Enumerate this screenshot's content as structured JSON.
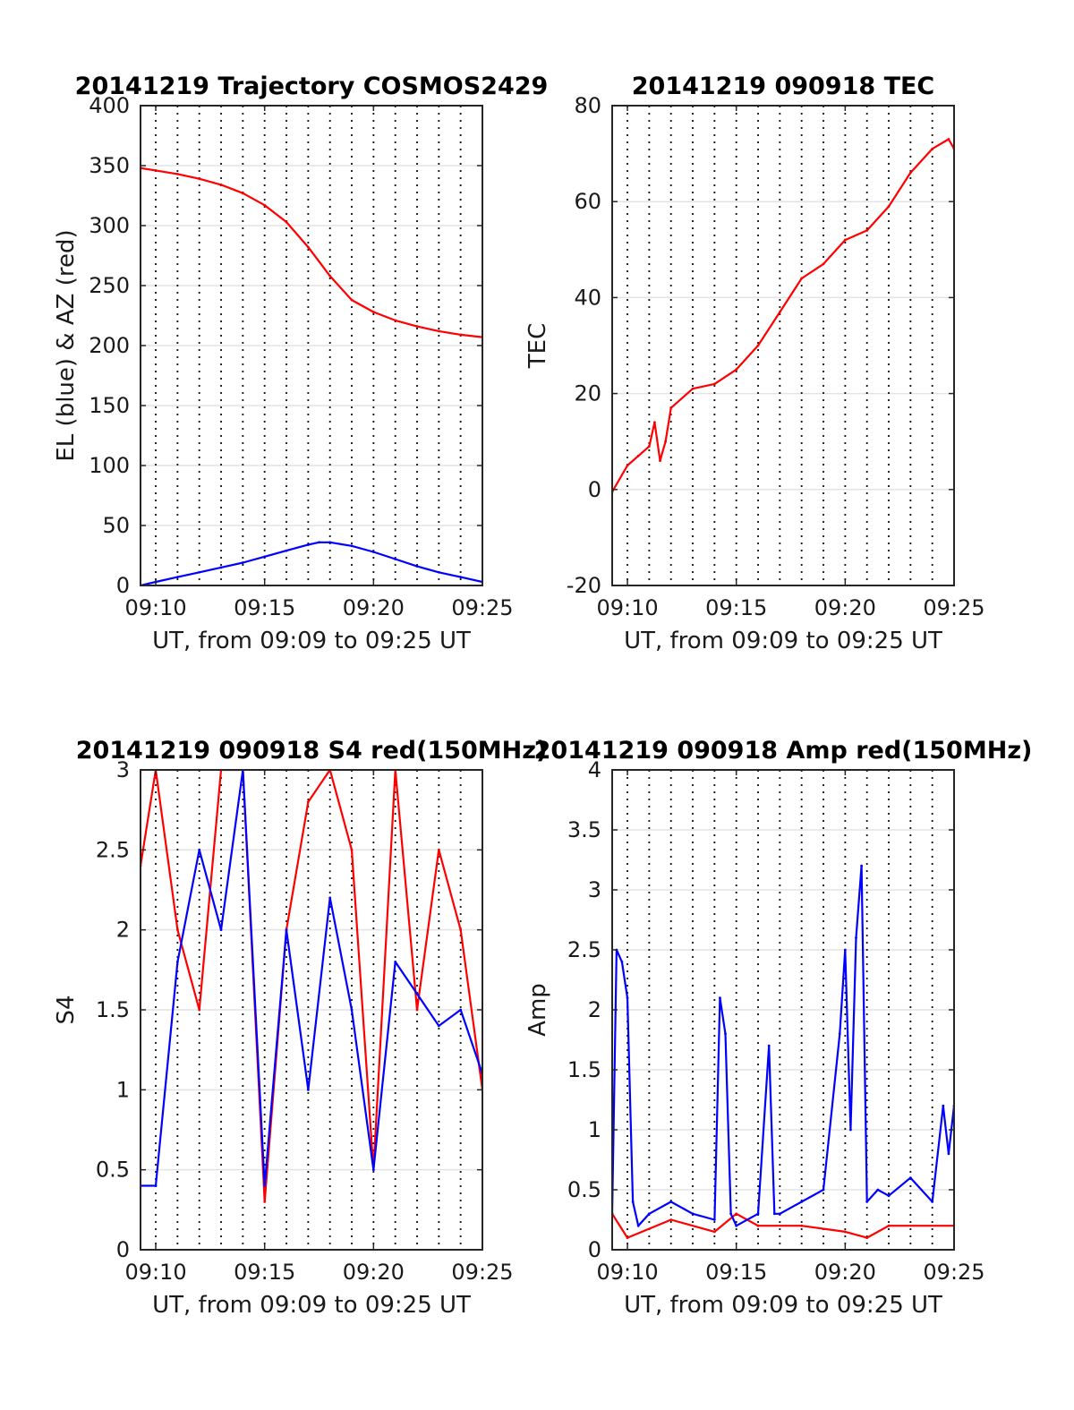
{
  "chart_data": [
    {
      "type": "line",
      "title": "20141219 Trajectory COSMOS2429",
      "xlabel": "UT, from 09:09 to 09:25 UT",
      "ylabel": "EL (blue) & AZ (red)",
      "xlim": [
        "09:09:18",
        "09:25:00"
      ],
      "ylim": [
        0,
        400
      ],
      "xticks": [
        "09:10",
        "09:15",
        "09:20",
        "09:25"
      ],
      "yticks": [
        "0",
        "50",
        "100",
        "150",
        "200",
        "250",
        "300",
        "350",
        "400"
      ],
      "grid": "vertical dotted every 1 min, horizontal light",
      "series": [
        {
          "color": "#ff0000",
          "x": [
            "09:09:18",
            "09:10:00",
            "09:11:00",
            "09:12:00",
            "09:13:00",
            "09:14:00",
            "09:15:00",
            "09:16:00",
            "09:17:00",
            "09:18:00",
            "09:19:00",
            "09:20:00",
            "09:21:00",
            "09:22:00",
            "09:23:00",
            "09:24:00",
            "09:25:00"
          ],
          "values": [
            348,
            346,
            343,
            339,
            334,
            327,
            317,
            303,
            282,
            258,
            238,
            228,
            221,
            216,
            212,
            209,
            207
          ]
        },
        {
          "color": "#0000ff",
          "x": [
            "09:09:18",
            "09:10:00",
            "09:11:00",
            "09:12:00",
            "09:13:00",
            "09:14:00",
            "09:15:00",
            "09:16:00",
            "09:17:00",
            "09:17:30",
            "09:18:00",
            "09:19:00",
            "09:20:00",
            "09:21:00",
            "09:22:00",
            "09:23:00",
            "09:24:00",
            "09:25:00"
          ],
          "values": [
            0,
            3,
            7,
            11,
            15,
            19,
            24,
            29,
            34,
            36,
            36,
            33,
            28,
            22,
            16,
            11,
            7,
            3
          ]
        }
      ]
    },
    {
      "type": "line",
      "title": "20141219 090918 TEC",
      "xlabel": "UT, from 09:09 to 09:25 UT",
      "ylabel": "TEC",
      "xlim": [
        "09:09:18",
        "09:25:00"
      ],
      "ylim": [
        -20,
        80
      ],
      "xticks": [
        "09:10",
        "09:15",
        "09:20",
        "09:25"
      ],
      "yticks": [
        "-20",
        "0",
        "20",
        "40",
        "60",
        "80"
      ],
      "grid": "vertical dotted every 1 min, horizontal light",
      "series": [
        {
          "color": "#ff0000",
          "x": [
            "09:09:18",
            "09:10:00",
            "09:10:30",
            "09:11:00",
            "09:11:15",
            "09:11:30",
            "09:11:45",
            "09:12:00",
            "09:13:00",
            "09:14:00",
            "09:15:00",
            "09:16:00",
            "09:17:00",
            "09:18:00",
            "09:19:00",
            "09:20:00",
            "09:21:00",
            "09:22:00",
            "09:23:00",
            "09:24:00",
            "09:24:45",
            "09:25:00"
          ],
          "values": [
            -0.5,
            5,
            7,
            9,
            14,
            6,
            10,
            17,
            21,
            22,
            25,
            30,
            37,
            44,
            47,
            52,
            54,
            59,
            66,
            71,
            73,
            71
          ]
        }
      ]
    },
    {
      "type": "line",
      "title": "20141219 090918 S4 red(150MHz)",
      "xlabel": "UT, from 09:09 to 09:25 UT",
      "ylabel": "S4",
      "xlim": [
        "09:09:18",
        "09:25:00"
      ],
      "ylim": [
        0,
        3
      ],
      "xticks": [
        "09:10",
        "09:15",
        "09:20",
        "09:25"
      ],
      "yticks": [
        "0",
        "0.5",
        "1",
        "1.5",
        "2",
        "2.5",
        "3"
      ],
      "grid": "vertical dotted every 1 min, horizontal light",
      "series": [
        {
          "color": "#ff0000",
          "x": [
            "09:09:18",
            "09:10:00",
            "09:11:00",
            "09:12:00",
            "09:13:00",
            "09:14:00",
            "09:15:00",
            "09:16:00",
            "09:17:00",
            "09:18:00",
            "09:19:00",
            "09:20:00",
            "09:21:00",
            "09:22:00",
            "09:23:00",
            "09:24:00",
            "09:25:00"
          ],
          "values": [
            2.4,
            3.0,
            2.0,
            1.5,
            3.0,
            3.0,
            0.3,
            2.0,
            2.8,
            3.0,
            2.5,
            0.5,
            3.0,
            1.5,
            2.5,
            2.0,
            1.0
          ]
        },
        {
          "color": "#0000ff",
          "x": [
            "09:09:18",
            "09:10:00",
            "09:11:00",
            "09:12:00",
            "09:13:00",
            "09:14:00",
            "09:15:00",
            "09:16:00",
            "09:17:00",
            "09:18:00",
            "09:19:00",
            "09:20:00",
            "09:21:00",
            "09:22:00",
            "09:23:00",
            "09:24:00",
            "09:25:00"
          ],
          "values": [
            0.4,
            0.4,
            1.8,
            2.5,
            2.0,
            3.0,
            0.4,
            2.0,
            1.0,
            2.2,
            1.5,
            0.5,
            1.8,
            1.6,
            1.4,
            1.5,
            1.1
          ]
        }
      ]
    },
    {
      "type": "line",
      "title": "20141219 090918 Amp red(150MHz)",
      "xlabel": "UT, from 09:09 to 09:25 UT",
      "ylabel": "Amp",
      "xlim": [
        "09:09:18",
        "09:25:00"
      ],
      "ylim": [
        0,
        4
      ],
      "xticks": [
        "09:10",
        "09:15",
        "09:20",
        "09:25"
      ],
      "yticks": [
        "0",
        "0.5",
        "1",
        "1.5",
        "2",
        "2.5",
        "3",
        "3.5",
        "4"
      ],
      "grid": "vertical dotted every 1 min, horizontal light",
      "series": [
        {
          "color": "#ff0000",
          "x": [
            "09:09:18",
            "09:10:00",
            "09:12:00",
            "09:14:00",
            "09:15:00",
            "09:16:00",
            "09:18:00",
            "09:20:00",
            "09:21:00",
            "09:22:00",
            "09:25:00"
          ],
          "values": [
            0.3,
            0.1,
            0.25,
            0.15,
            0.3,
            0.2,
            0.2,
            0.15,
            0.1,
            0.2,
            0.2
          ]
        },
        {
          "color": "#0000ff",
          "x": [
            "09:09:18",
            "09:09:30",
            "09:09:45",
            "09:10:00",
            "09:10:15",
            "09:10:30",
            "09:11:00",
            "09:12:00",
            "09:13:00",
            "09:14:00",
            "09:14:15",
            "09:14:30",
            "09:14:45",
            "09:15:00",
            "09:16:00",
            "09:16:30",
            "09:16:45",
            "09:17:00",
            "09:18:00",
            "09:19:00",
            "09:19:45",
            "09:20:00",
            "09:20:15",
            "09:20:30",
            "09:20:45",
            "09:21:00",
            "09:21:30",
            "09:22:00",
            "09:23:00",
            "09:24:00",
            "09:24:30",
            "09:24:45",
            "09:25:00"
          ],
          "values": [
            0.3,
            2.5,
            2.4,
            2.1,
            0.4,
            0.2,
            0.3,
            0.4,
            0.3,
            0.25,
            2.1,
            1.8,
            0.3,
            0.2,
            0.3,
            1.7,
            0.3,
            0.3,
            0.4,
            0.5,
            1.8,
            2.5,
            1.0,
            2.6,
            3.2,
            0.4,
            0.5,
            0.45,
            0.6,
            0.4,
            1.2,
            0.8,
            1.2
          ]
        }
      ]
    }
  ]
}
